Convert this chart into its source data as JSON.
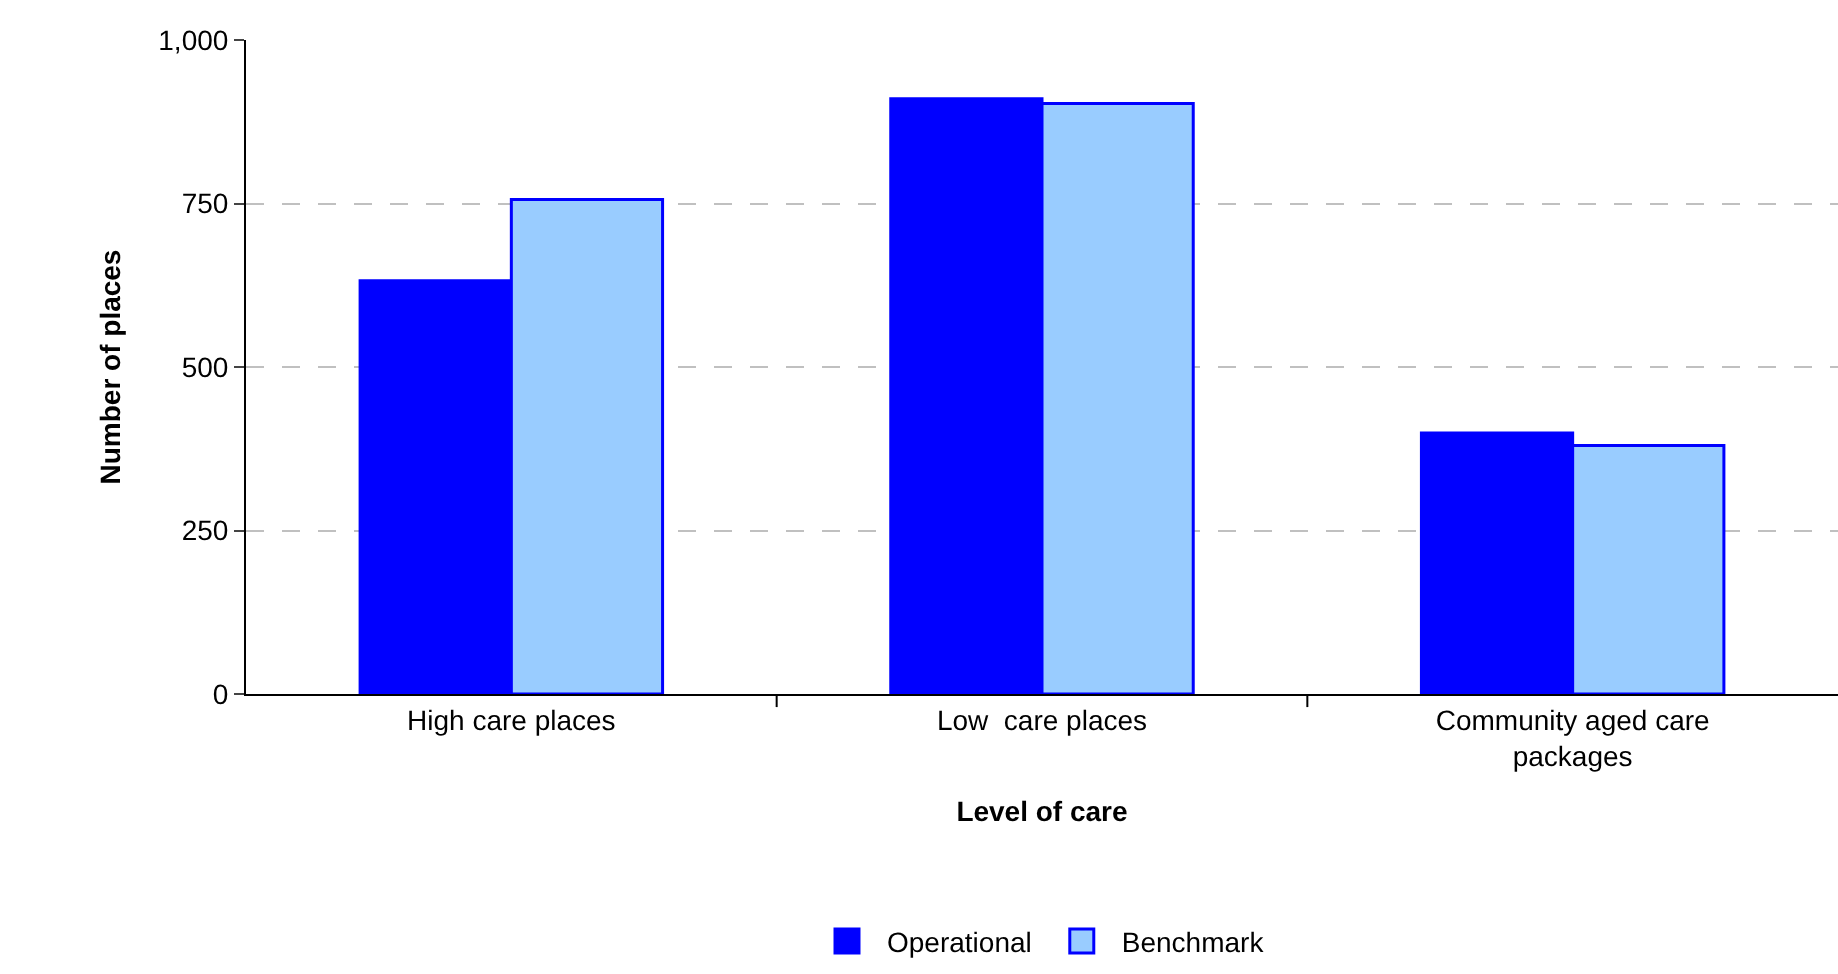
{
  "chart_data": {
    "type": "bar",
    "xlabel": "Level of care",
    "ylabel": "Number of places",
    "categories": [
      "High care places",
      "Low  care places",
      "Community aged care packages"
    ],
    "series": [
      {
        "name": "Operational",
        "color": "#0000ff",
        "values": [
          632,
          910,
          399
        ]
      },
      {
        "name": "Benchmark",
        "color": "#99ccff",
        "values": [
          756,
          903,
          380
        ]
      }
    ],
    "ylim": [
      0,
      1000
    ],
    "yticks": [
      0,
      250,
      500,
      750,
      {
        "value": 1000,
        "label": "1,000"
      }
    ],
    "grid": "y",
    "legend": "bottom"
  }
}
